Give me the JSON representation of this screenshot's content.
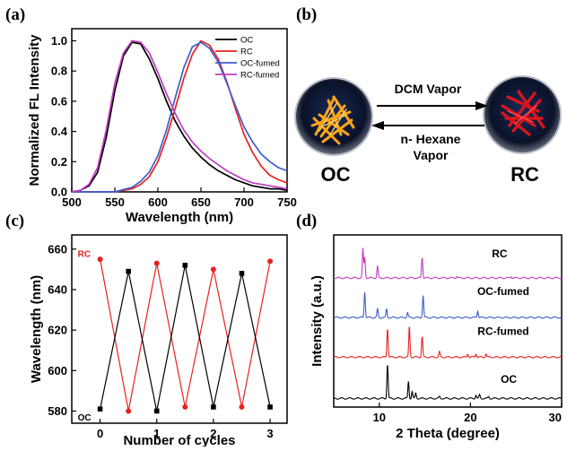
{
  "panels": {
    "a": "(a)",
    "b": "(b)",
    "c": "(c)",
    "d": "(d)"
  },
  "diagram": {
    "left_label": "OC",
    "right_label": "RC",
    "forward_label": "DCM Vapor",
    "reverse_label_1": "n- Hexane",
    "reverse_label_2": "Vapor"
  },
  "chart_data": [
    {
      "id": "a",
      "type": "line",
      "xlabel": "Wavelength (nm)",
      "ylabel": "Normalized FL Intensity",
      "xlim": [
        500,
        750
      ],
      "ylim": [
        0,
        1.08
      ],
      "xticks": [
        500,
        550,
        600,
        650,
        700,
        750
      ],
      "yticks": [
        0.0,
        0.2,
        0.4,
        0.6,
        0.8,
        1.0
      ],
      "grid": false,
      "legend_position": "top-right",
      "series": [
        {
          "name": "OC",
          "color": "#000000",
          "x": [
            500,
            510,
            520,
            530,
            540,
            550,
            560,
            570,
            580,
            590,
            600,
            610,
            620,
            630,
            640,
            650,
            660,
            670,
            680,
            690,
            700,
            710,
            720,
            730,
            740,
            750
          ],
          "y": [
            0.0,
            0.01,
            0.04,
            0.13,
            0.36,
            0.67,
            0.9,
            0.99,
            0.98,
            0.88,
            0.75,
            0.6,
            0.47,
            0.37,
            0.29,
            0.23,
            0.18,
            0.14,
            0.11,
            0.08,
            0.06,
            0.04,
            0.03,
            0.02,
            0.02,
            0.01
          ]
        },
        {
          "name": "RC",
          "color": "#e8211e",
          "x": [
            500,
            550,
            570,
            580,
            590,
            600,
            610,
            620,
            630,
            640,
            650,
            660,
            670,
            680,
            690,
            700,
            710,
            720,
            730,
            740,
            750
          ],
          "y": [
            0.0,
            0.0,
            0.02,
            0.05,
            0.1,
            0.2,
            0.36,
            0.55,
            0.75,
            0.91,
            1.0,
            0.97,
            0.88,
            0.73,
            0.55,
            0.38,
            0.26,
            0.17,
            0.11,
            0.08,
            0.06
          ]
        },
        {
          "name": "OC-fumed",
          "color": "#3a5fcd",
          "x": [
            500,
            550,
            570,
            580,
            590,
            600,
            610,
            620,
            630,
            640,
            650,
            660,
            670,
            680,
            690,
            700,
            710,
            720,
            730,
            740,
            750
          ],
          "y": [
            0.0,
            0.0,
            0.03,
            0.07,
            0.13,
            0.24,
            0.41,
            0.62,
            0.82,
            0.96,
            0.99,
            0.95,
            0.86,
            0.72,
            0.57,
            0.43,
            0.33,
            0.25,
            0.2,
            0.16,
            0.14
          ]
        },
        {
          "name": "RC-fumed",
          "color": "#c13bc1",
          "x": [
            500,
            510,
            520,
            530,
            540,
            550,
            560,
            570,
            580,
            590,
            600,
            610,
            620,
            630,
            640,
            650,
            660,
            670,
            680,
            690,
            700,
            710,
            720,
            730,
            740,
            750
          ],
          "y": [
            0.0,
            0.01,
            0.05,
            0.16,
            0.41,
            0.72,
            0.92,
            1.0,
            0.99,
            0.92,
            0.79,
            0.65,
            0.52,
            0.41,
            0.33,
            0.27,
            0.22,
            0.18,
            0.14,
            0.11,
            0.08,
            0.06,
            0.05,
            0.04,
            0.03,
            0.02
          ]
        }
      ]
    },
    {
      "id": "c",
      "type": "line",
      "xlabel": "Number of cycles",
      "ylabel": "Wavelength (nm)",
      "xlim": [
        -0.5,
        3.3
      ],
      "ylim": [
        574,
        667
      ],
      "xticks": [
        0,
        1,
        2,
        3
      ],
      "yticks": [
        580,
        600,
        620,
        640,
        660
      ],
      "grid": false,
      "annotations": [
        {
          "text": "RC",
          "x": -0.3,
          "y": 658,
          "color": "#e8211e"
        },
        {
          "text": "OC",
          "x": -0.3,
          "y": 577,
          "color": "#000000"
        }
      ],
      "series": [
        {
          "name": "RC",
          "color": "#e8211e",
          "marker": "circle",
          "x": [
            0,
            0.5,
            1,
            1.5,
            2,
            2.5,
            3
          ],
          "y": [
            655,
            580,
            653,
            582,
            650,
            582,
            654
          ]
        },
        {
          "name": "OC",
          "color": "#000000",
          "marker": "square",
          "x": [
            0,
            0.5,
            1,
            1.5,
            2,
            2.5,
            3
          ],
          "y": [
            581,
            649,
            580,
            652,
            582,
            648,
            582
          ]
        }
      ]
    },
    {
      "id": "d",
      "type": "line",
      "xlabel": "2 Theta (degree)",
      "ylabel": "Intensity (a.u.)",
      "xlim": [
        5,
        30
      ],
      "ylim": [
        0,
        1
      ],
      "xticks": [
        10,
        20,
        30
      ],
      "yticks": [],
      "grid": false,
      "series": [
        {
          "name": "RC",
          "color": "#c13bc1",
          "offset": 0.75,
          "peaks": [
            [
              8.2,
              0.17
            ],
            [
              8.4,
              0.12
            ],
            [
              9.8,
              0.07
            ],
            [
              14.7,
              0.12
            ],
            [
              18.5,
              0.01
            ],
            [
              24.5,
              0.01
            ]
          ]
        },
        {
          "name": "OC-fumed",
          "color": "#3a5fcd",
          "offset": 0.52,
          "peaks": [
            [
              8.4,
              0.15
            ],
            [
              9.8,
              0.05
            ],
            [
              10.8,
              0.05
            ],
            [
              13.1,
              0.03
            ],
            [
              14.8,
              0.13
            ],
            [
              20.8,
              0.04
            ]
          ]
        },
        {
          "name": "RC-fumed",
          "color": "#e8211e",
          "offset": 0.29,
          "peaks": [
            [
              10.9,
              0.17
            ],
            [
              13.3,
              0.18
            ],
            [
              14.7,
              0.12
            ],
            [
              16.6,
              0.03
            ],
            [
              19.7,
              0.02
            ],
            [
              20.6,
              0.02
            ],
            [
              21.7,
              0.02
            ]
          ]
        },
        {
          "name": "OC",
          "color": "#000000",
          "offset": 0.05,
          "peaks": [
            [
              10.9,
              0.2
            ],
            [
              13.2,
              0.1
            ],
            [
              13.6,
              0.04
            ],
            [
              14.0,
              0.03
            ],
            [
              16.6,
              0.01
            ],
            [
              20.6,
              0.02
            ],
            [
              21.0,
              0.02
            ],
            [
              22.0,
              0.01
            ]
          ]
        }
      ]
    }
  ]
}
